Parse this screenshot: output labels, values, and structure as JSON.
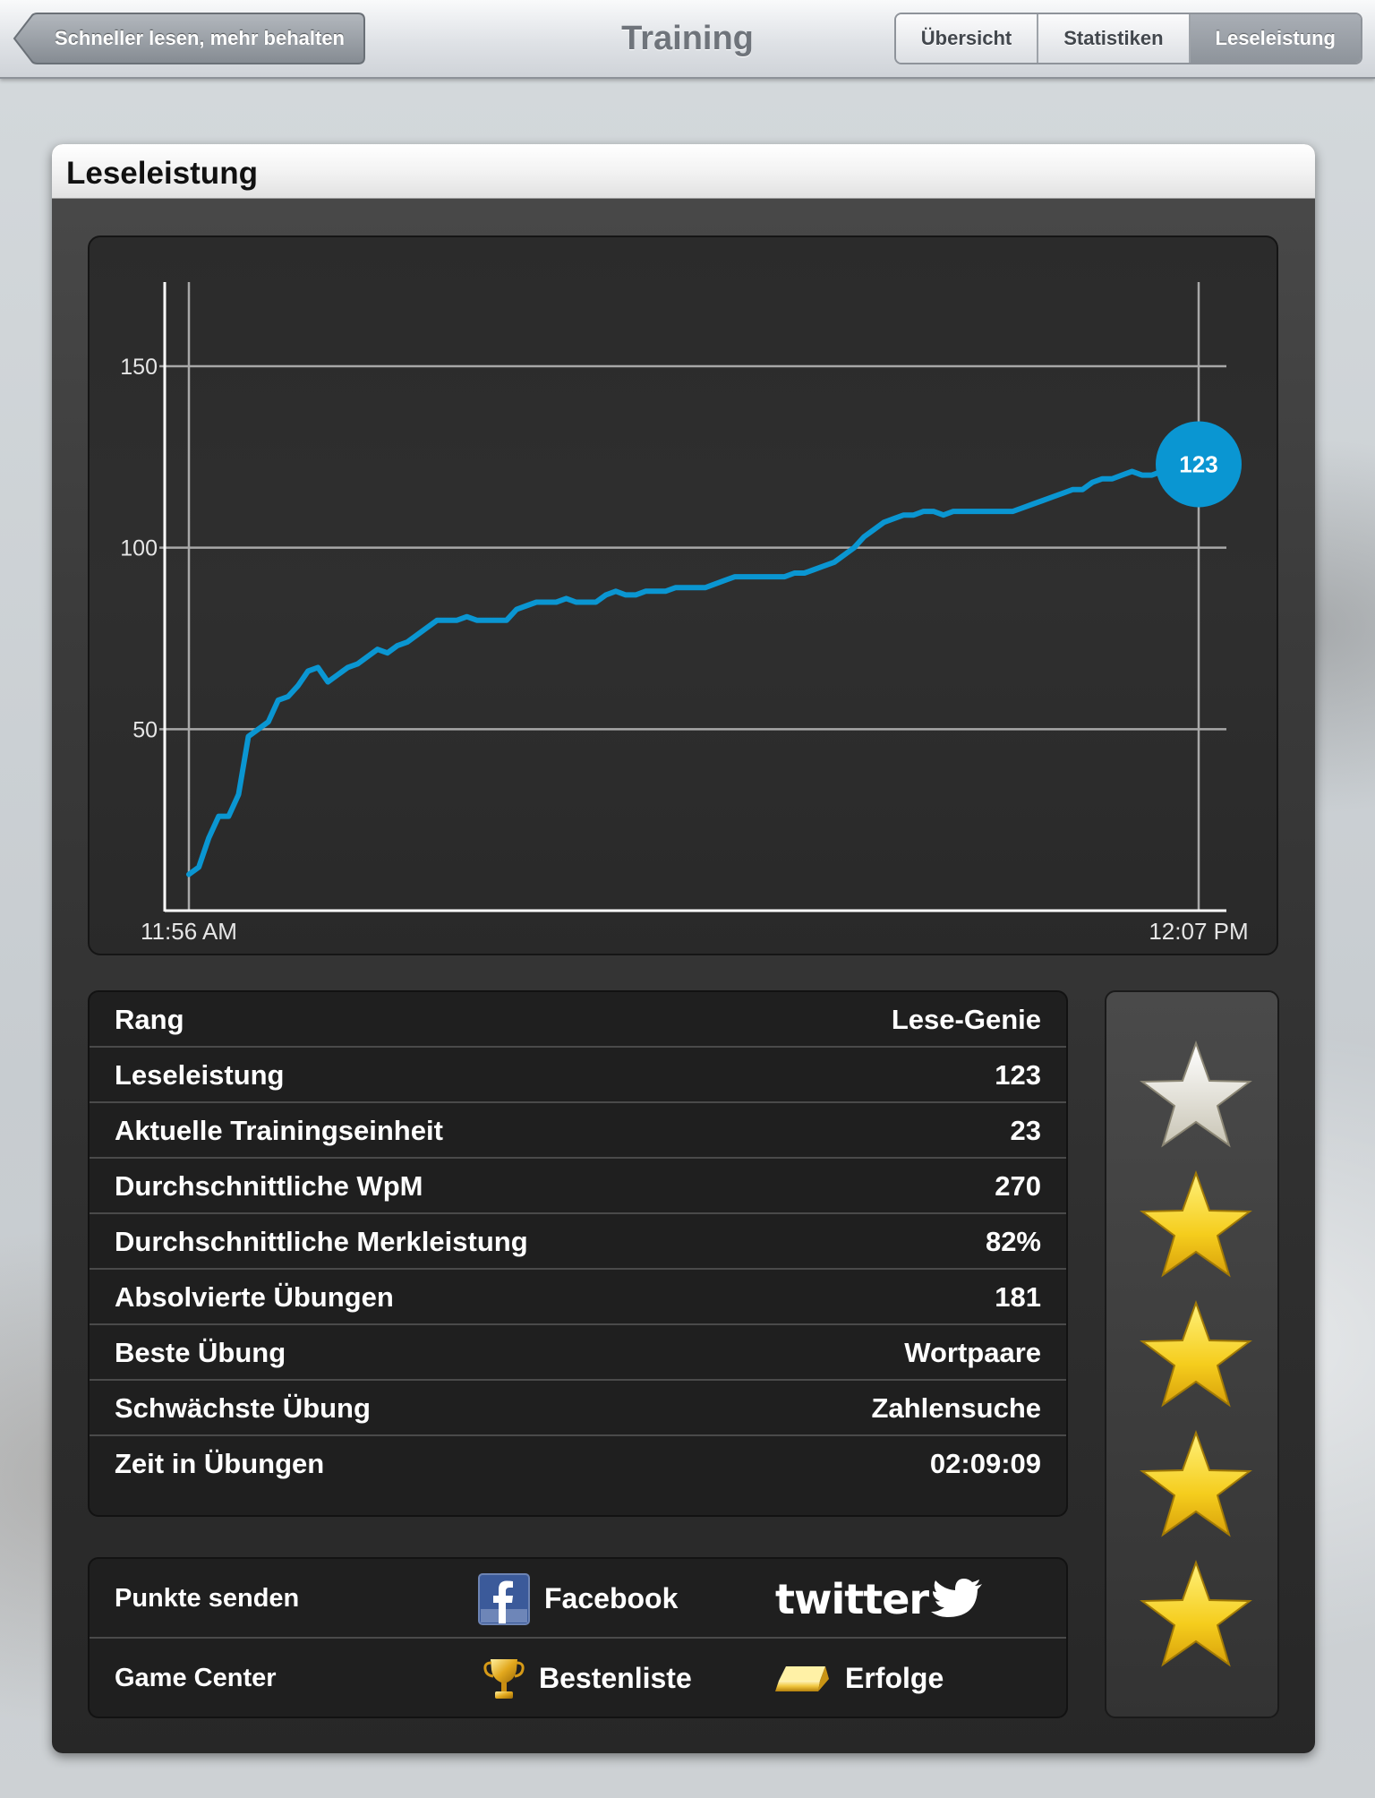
{
  "navbar": {
    "back_label": "Schneller lesen, mehr behalten",
    "title": "Training",
    "segments": [
      "Übersicht",
      "Statistiken",
      "Leseleistung"
    ],
    "active_segment": "Leseleistung"
  },
  "panel": {
    "title": "Leseleistung"
  },
  "chart_data": {
    "type": "line",
    "x_labels": [
      "11:56 AM",
      "12:07 PM"
    ],
    "y_ticks": [
      50,
      100,
      150
    ],
    "ylim": [
      0,
      180
    ],
    "grid": true,
    "current_value_label": "123",
    "current_value": 123,
    "series": [
      {
        "color": "#0a96d2",
        "values": [
          10,
          12,
          20,
          26,
          26,
          32,
          48,
          50,
          52,
          58,
          59,
          62,
          66,
          67,
          63,
          65,
          67,
          68,
          70,
          72,
          71,
          73,
          74,
          76,
          78,
          80,
          80,
          80,
          81,
          80,
          80,
          80,
          80,
          83,
          84,
          85,
          85,
          85,
          86,
          85,
          85,
          85,
          87,
          88,
          87,
          87,
          88,
          88,
          88,
          89,
          89,
          89,
          89,
          90,
          91,
          92,
          92,
          92,
          92,
          92,
          92,
          93,
          93,
          94,
          95,
          96,
          98,
          100,
          103,
          105,
          107,
          108,
          109,
          109,
          110,
          110,
          109,
          110,
          110,
          110,
          110,
          110,
          110,
          110,
          111,
          112,
          113,
          114,
          115,
          116,
          116,
          118,
          119,
          119,
          120,
          121,
          120,
          120,
          121,
          123
        ]
      }
    ]
  },
  "stats": [
    {
      "label": "Rang",
      "value": "Lese-Genie"
    },
    {
      "label": "Leseleistung",
      "value": "123"
    },
    {
      "label": "Aktuelle Trainingseinheit",
      "value": "23"
    },
    {
      "label": "Durchschnittliche WpM",
      "value": "270"
    },
    {
      "label": "Durchschnittliche Merkleistung",
      "value": "82%"
    },
    {
      "label": "Absolvierte Übungen",
      "value": "181"
    },
    {
      "label": "Beste Übung",
      "value": "Wortpaare"
    },
    {
      "label": "Schwächste Übung",
      "value": "Zahlensuche"
    },
    {
      "label": "Zeit in Übungen",
      "value": "02:09:09"
    }
  ],
  "social": {
    "send_label": "Punkte senden",
    "facebook_label": "Facebook",
    "twitter_label": "twitter",
    "gamecenter_label": "Game Center",
    "leaderboard_label": "Bestenliste",
    "achievements_label": "Erfolge"
  },
  "stars": {
    "total": 5,
    "colors": [
      "#f1efe6",
      "#f6cf1f",
      "#f6cf1f",
      "#f6cf1f",
      "#f6cf1f"
    ]
  },
  "colors": {
    "accent": "#0a96d2"
  }
}
